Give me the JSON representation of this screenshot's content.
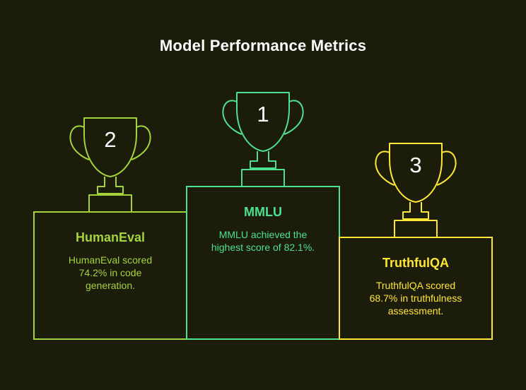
{
  "title": "Model Performance Metrics",
  "colors": {
    "background": "#1c1c0b",
    "humaneval": "#a4d33a",
    "mmlu": "#4ee08f",
    "truthfulqa": "#ffe733"
  },
  "podium": [
    {
      "rank": "2",
      "name": "HumanEval",
      "description_lines": [
        "HumanEval scored",
        "74.2% in code",
        "generation."
      ],
      "icon": "trophy-icon"
    },
    {
      "rank": "1",
      "name": "MMLU",
      "description_lines": [
        "MMLU achieved the",
        "highest score of 82.1%."
      ],
      "icon": "trophy-icon"
    },
    {
      "rank": "3",
      "name": "TruthfulQA",
      "description_lines": [
        "TruthfulQA scored",
        "68.7% in truthfulness",
        "assessment."
      ],
      "icon": "trophy-icon"
    }
  ]
}
